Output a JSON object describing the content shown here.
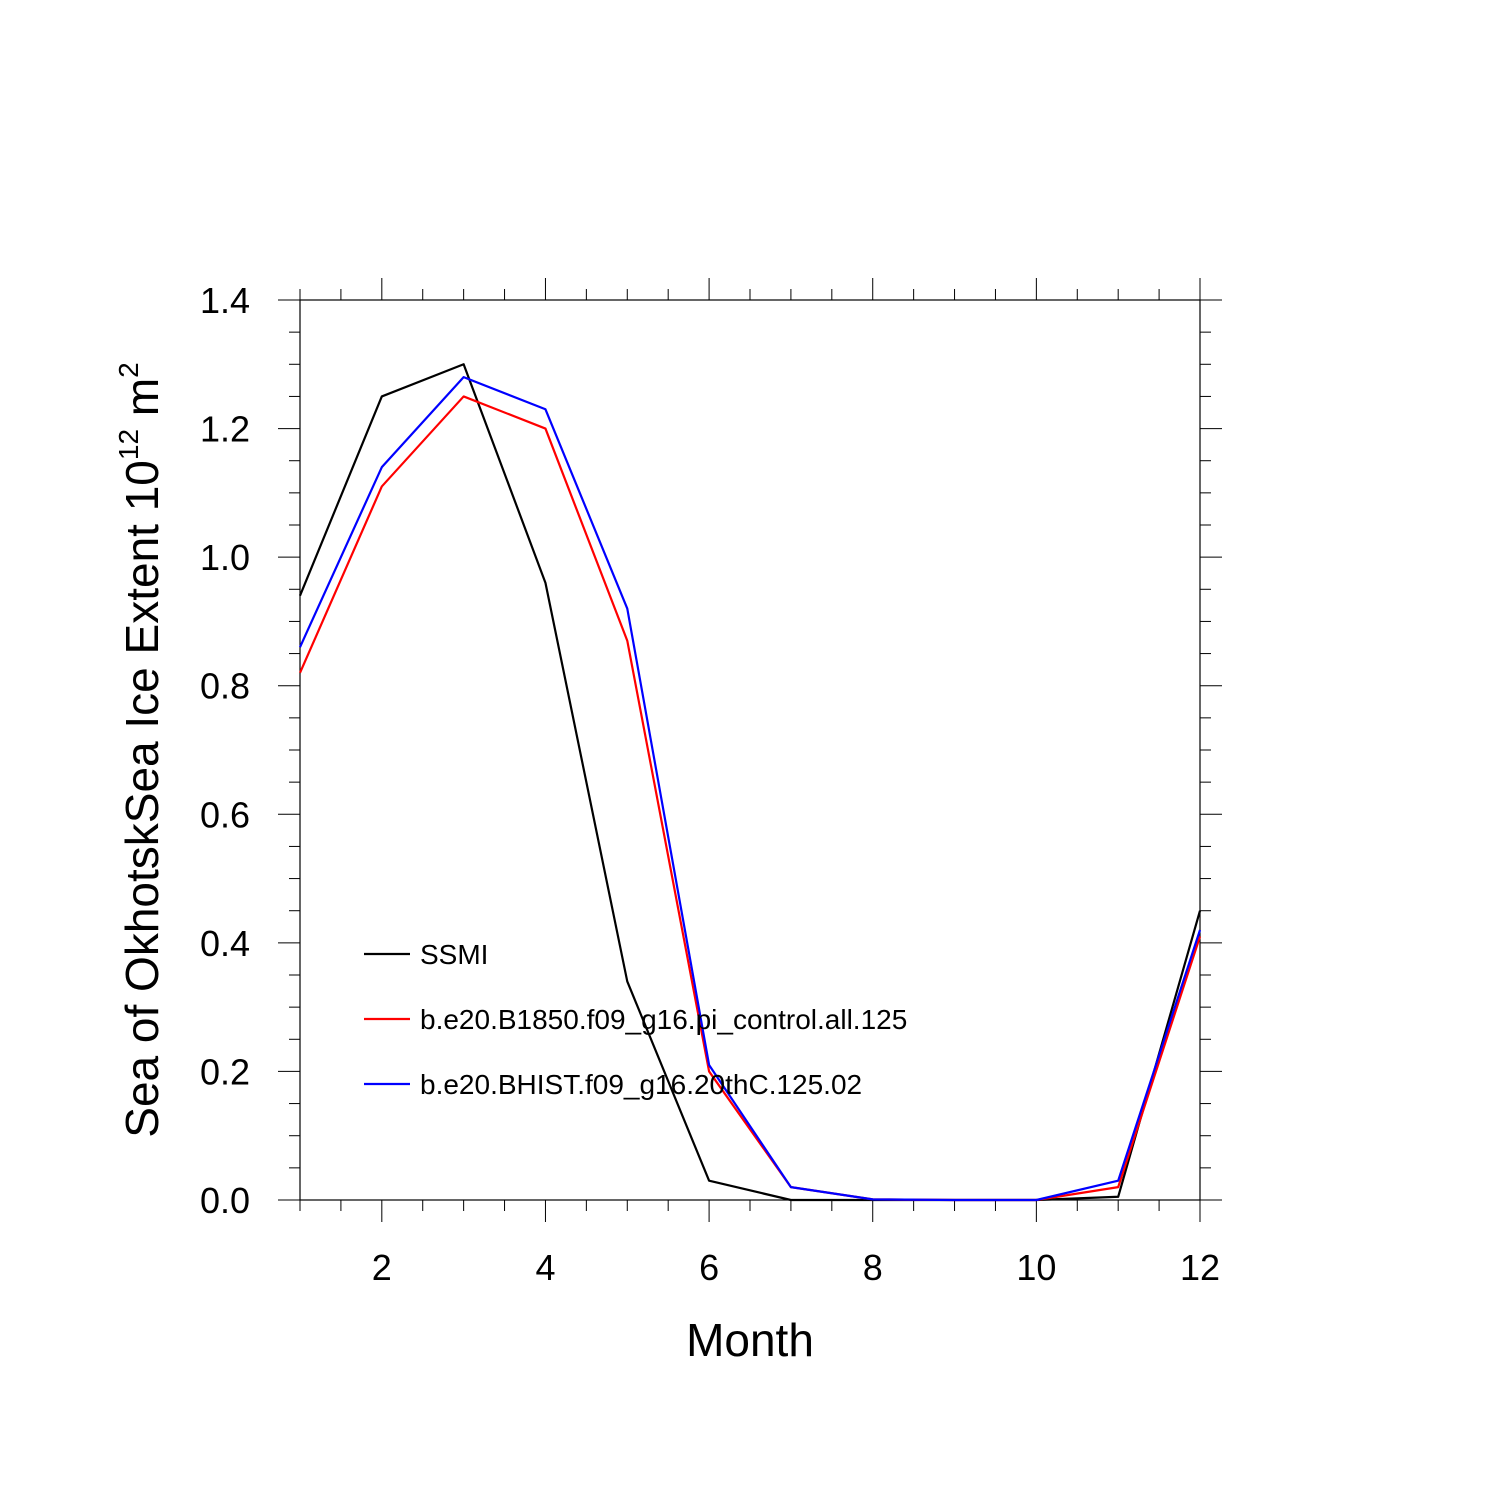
{
  "chart_data": {
    "type": "line",
    "title": "",
    "xlabel": "Month",
    "ylabel": {
      "text": "Sea of OkhotskSea Ice Extent 10",
      "superscript": "12",
      "unit": "m",
      "unit_superscript": "2"
    },
    "xlim": [
      1,
      12
    ],
    "ylim": [
      0,
      1.4
    ],
    "x_ticks": [
      2,
      4,
      6,
      8,
      10,
      12
    ],
    "x_tick_labels": [
      "2",
      "4",
      "6",
      "8",
      "10",
      "12"
    ],
    "y_ticks": [
      0,
      0.2,
      0.4,
      0.6,
      0.8,
      1.0,
      1.2,
      1.4
    ],
    "y_tick_labels": [
      "0.0",
      "0.2",
      "0.4",
      "0.6",
      "0.8",
      "1.0",
      "1.2",
      "1.4"
    ],
    "x_minor_step": 0.5,
    "y_minor_step": 0.05,
    "grid": false,
    "legend_position": "lower-left, inside plot",
    "x": [
      1,
      2,
      3,
      4,
      5,
      6,
      7,
      8,
      9,
      10,
      11,
      12
    ],
    "series": [
      {
        "name": "SSMI",
        "color": "#000000",
        "values": [
          0.94,
          1.25,
          1.3,
          0.96,
          0.34,
          0.03,
          0.0,
          0.0,
          0.0,
          0.0,
          0.005,
          0.45
        ]
      },
      {
        "name": "b.e20.B1850.f09_g16.pi_control.all.125",
        "color": "#ff0000",
        "values": [
          0.82,
          1.11,
          1.25,
          1.2,
          0.87,
          0.2,
          0.02,
          0.001,
          0.0,
          0.0,
          0.02,
          0.41
        ]
      },
      {
        "name": "b.e20.BHIST.f09_g16.20thC.125.02",
        "color": "#0000ff",
        "values": [
          0.86,
          1.14,
          1.28,
          1.23,
          0.92,
          0.21,
          0.02,
          0.001,
          0.0,
          0.0,
          0.03,
          0.42
        ]
      }
    ]
  }
}
